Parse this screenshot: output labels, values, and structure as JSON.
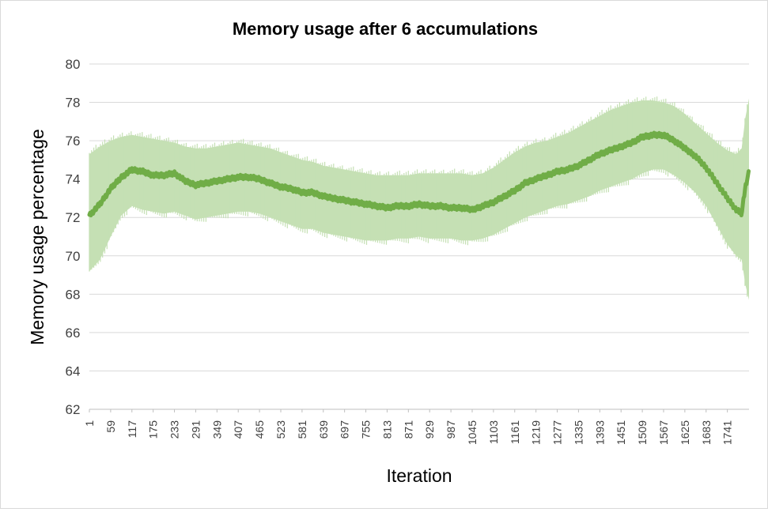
{
  "chart_data": {
    "type": "line",
    "title": "Memory usage after 6 accumulations",
    "xlabel": "Iteration",
    "ylabel": "Memory usage percentage",
    "ylim": [
      62,
      80
    ],
    "yticks": [
      62,
      64,
      66,
      68,
      70,
      72,
      74,
      76,
      78,
      80
    ],
    "xlim": [
      1,
      1800
    ],
    "xtick_labels": [
      "1",
      "59",
      "117",
      "175",
      "233",
      "291",
      "349",
      "407",
      "465",
      "523",
      "581",
      "639",
      "697",
      "755",
      "813",
      "871",
      "929",
      "987",
      "1045",
      "1103",
      "1161",
      "1219",
      "1277",
      "1335",
      "1393",
      "1451",
      "1509",
      "1567",
      "1625",
      "1683",
      "1741"
    ],
    "grid": true,
    "legend": "none",
    "series": [
      {
        "values_mean": [
          {
            "x": 1,
            "y": 72.1
          },
          {
            "x": 30,
            "y": 72.7
          },
          {
            "x": 59,
            "y": 73.5
          },
          {
            "x": 88,
            "y": 74.1
          },
          {
            "x": 117,
            "y": 74.5
          },
          {
            "x": 146,
            "y": 74.4
          },
          {
            "x": 175,
            "y": 74.2
          },
          {
            "x": 204,
            "y": 74.2
          },
          {
            "x": 233,
            "y": 74.3
          },
          {
            "x": 262,
            "y": 73.9
          },
          {
            "x": 291,
            "y": 73.7
          },
          {
            "x": 320,
            "y": 73.8
          },
          {
            "x": 349,
            "y": 73.9
          },
          {
            "x": 378,
            "y": 74.0
          },
          {
            "x": 407,
            "y": 74.1
          },
          {
            "x": 436,
            "y": 74.1
          },
          {
            "x": 465,
            "y": 74.0
          },
          {
            "x": 494,
            "y": 73.8
          },
          {
            "x": 523,
            "y": 73.6
          },
          {
            "x": 552,
            "y": 73.5
          },
          {
            "x": 581,
            "y": 73.3
          },
          {
            "x": 610,
            "y": 73.3
          },
          {
            "x": 639,
            "y": 73.1
          },
          {
            "x": 668,
            "y": 73.0
          },
          {
            "x": 697,
            "y": 72.9
          },
          {
            "x": 726,
            "y": 72.8
          },
          {
            "x": 755,
            "y": 72.7
          },
          {
            "x": 784,
            "y": 72.6
          },
          {
            "x": 813,
            "y": 72.5
          },
          {
            "x": 842,
            "y": 72.6
          },
          {
            "x": 871,
            "y": 72.6
          },
          {
            "x": 900,
            "y": 72.7
          },
          {
            "x": 929,
            "y": 72.6
          },
          {
            "x": 958,
            "y": 72.6
          },
          {
            "x": 987,
            "y": 72.5
          },
          {
            "x": 1016,
            "y": 72.5
          },
          {
            "x": 1045,
            "y": 72.4
          },
          {
            "x": 1074,
            "y": 72.6
          },
          {
            "x": 1103,
            "y": 72.8
          },
          {
            "x": 1132,
            "y": 73.1
          },
          {
            "x": 1161,
            "y": 73.4
          },
          {
            "x": 1190,
            "y": 73.8
          },
          {
            "x": 1219,
            "y": 74.0
          },
          {
            "x": 1248,
            "y": 74.2
          },
          {
            "x": 1277,
            "y": 74.4
          },
          {
            "x": 1306,
            "y": 74.5
          },
          {
            "x": 1335,
            "y": 74.7
          },
          {
            "x": 1364,
            "y": 75.0
          },
          {
            "x": 1393,
            "y": 75.3
          },
          {
            "x": 1422,
            "y": 75.5
          },
          {
            "x": 1451,
            "y": 75.7
          },
          {
            "x": 1480,
            "y": 75.9
          },
          {
            "x": 1509,
            "y": 76.2
          },
          {
            "x": 1538,
            "y": 76.3
          },
          {
            "x": 1567,
            "y": 76.3
          },
          {
            "x": 1596,
            "y": 76.0
          },
          {
            "x": 1625,
            "y": 75.6
          },
          {
            "x": 1654,
            "y": 75.2
          },
          {
            "x": 1683,
            "y": 74.6
          },
          {
            "x": 1712,
            "y": 73.8
          },
          {
            "x": 1741,
            "y": 73.0
          },
          {
            "x": 1765,
            "y": 72.4
          },
          {
            "x": 1780,
            "y": 72.2
          },
          {
            "x": 1790,
            "y": 73.6
          },
          {
            "x": 1800,
            "y": 74.4
          }
        ],
        "band_upper": [
          {
            "x": 1,
            "y": 75.3
          },
          {
            "x": 30,
            "y": 75.7
          },
          {
            "x": 59,
            "y": 76.0
          },
          {
            "x": 88,
            "y": 76.2
          },
          {
            "x": 117,
            "y": 76.3
          },
          {
            "x": 146,
            "y": 76.2
          },
          {
            "x": 175,
            "y": 76.1
          },
          {
            "x": 204,
            "y": 76.0
          },
          {
            "x": 233,
            "y": 75.9
          },
          {
            "x": 262,
            "y": 75.7
          },
          {
            "x": 291,
            "y": 75.6
          },
          {
            "x": 320,
            "y": 75.6
          },
          {
            "x": 349,
            "y": 75.7
          },
          {
            "x": 378,
            "y": 75.8
          },
          {
            "x": 407,
            "y": 75.9
          },
          {
            "x": 436,
            "y": 75.8
          },
          {
            "x": 465,
            "y": 75.7
          },
          {
            "x": 494,
            "y": 75.6
          },
          {
            "x": 523,
            "y": 75.4
          },
          {
            "x": 552,
            "y": 75.2
          },
          {
            "x": 581,
            "y": 75.0
          },
          {
            "x": 610,
            "y": 74.9
          },
          {
            "x": 639,
            "y": 74.7
          },
          {
            "x": 668,
            "y": 74.6
          },
          {
            "x": 697,
            "y": 74.5
          },
          {
            "x": 726,
            "y": 74.4
          },
          {
            "x": 755,
            "y": 74.3
          },
          {
            "x": 784,
            "y": 74.2
          },
          {
            "x": 813,
            "y": 74.2
          },
          {
            "x": 842,
            "y": 74.2
          },
          {
            "x": 871,
            "y": 74.2
          },
          {
            "x": 900,
            "y": 74.3
          },
          {
            "x": 929,
            "y": 74.3
          },
          {
            "x": 958,
            "y": 74.3
          },
          {
            "x": 987,
            "y": 74.3
          },
          {
            "x": 1016,
            "y": 74.3
          },
          {
            "x": 1045,
            "y": 74.2
          },
          {
            "x": 1074,
            "y": 74.3
          },
          {
            "x": 1103,
            "y": 74.6
          },
          {
            "x": 1132,
            "y": 75.0
          },
          {
            "x": 1161,
            "y": 75.4
          },
          {
            "x": 1190,
            "y": 75.7
          },
          {
            "x": 1219,
            "y": 75.9
          },
          {
            "x": 1248,
            "y": 76.0
          },
          {
            "x": 1277,
            "y": 76.2
          },
          {
            "x": 1306,
            "y": 76.4
          },
          {
            "x": 1335,
            "y": 76.7
          },
          {
            "x": 1364,
            "y": 77.0
          },
          {
            "x": 1393,
            "y": 77.3
          },
          {
            "x": 1422,
            "y": 77.6
          },
          {
            "x": 1451,
            "y": 77.8
          },
          {
            "x": 1480,
            "y": 78.0
          },
          {
            "x": 1509,
            "y": 78.1
          },
          {
            "x": 1538,
            "y": 78.1
          },
          {
            "x": 1567,
            "y": 78.0
          },
          {
            "x": 1596,
            "y": 77.8
          },
          {
            "x": 1625,
            "y": 77.4
          },
          {
            "x": 1654,
            "y": 76.9
          },
          {
            "x": 1683,
            "y": 76.4
          },
          {
            "x": 1712,
            "y": 75.9
          },
          {
            "x": 1741,
            "y": 75.5
          },
          {
            "x": 1765,
            "y": 75.3
          },
          {
            "x": 1780,
            "y": 75.6
          },
          {
            "x": 1790,
            "y": 77.2
          },
          {
            "x": 1800,
            "y": 78.2
          }
        ],
        "band_lower": [
          {
            "x": 1,
            "y": 69.2
          },
          {
            "x": 30,
            "y": 69.8
          },
          {
            "x": 59,
            "y": 71.0
          },
          {
            "x": 88,
            "y": 72.1
          },
          {
            "x": 117,
            "y": 72.6
          },
          {
            "x": 146,
            "y": 72.4
          },
          {
            "x": 175,
            "y": 72.3
          },
          {
            "x": 204,
            "y": 72.2
          },
          {
            "x": 233,
            "y": 72.3
          },
          {
            "x": 262,
            "y": 72.1
          },
          {
            "x": 291,
            "y": 71.9
          },
          {
            "x": 320,
            "y": 72.0
          },
          {
            "x": 349,
            "y": 72.1
          },
          {
            "x": 378,
            "y": 72.2
          },
          {
            "x": 407,
            "y": 72.3
          },
          {
            "x": 436,
            "y": 72.3
          },
          {
            "x": 465,
            "y": 72.2
          },
          {
            "x": 494,
            "y": 72.0
          },
          {
            "x": 523,
            "y": 71.8
          },
          {
            "x": 552,
            "y": 71.6
          },
          {
            "x": 581,
            "y": 71.4
          },
          {
            "x": 610,
            "y": 71.4
          },
          {
            "x": 639,
            "y": 71.2
          },
          {
            "x": 668,
            "y": 71.1
          },
          {
            "x": 697,
            "y": 71.0
          },
          {
            "x": 726,
            "y": 70.9
          },
          {
            "x": 755,
            "y": 70.8
          },
          {
            "x": 784,
            "y": 70.8
          },
          {
            "x": 813,
            "y": 70.8
          },
          {
            "x": 842,
            "y": 70.9
          },
          {
            "x": 871,
            "y": 70.9
          },
          {
            "x": 900,
            "y": 71.0
          },
          {
            "x": 929,
            "y": 70.9
          },
          {
            "x": 958,
            "y": 70.9
          },
          {
            "x": 987,
            "y": 70.9
          },
          {
            "x": 1016,
            "y": 70.8
          },
          {
            "x": 1045,
            "y": 70.8
          },
          {
            "x": 1074,
            "y": 70.9
          },
          {
            "x": 1103,
            "y": 71.1
          },
          {
            "x": 1132,
            "y": 71.4
          },
          {
            "x": 1161,
            "y": 71.7
          },
          {
            "x": 1190,
            "y": 72.0
          },
          {
            "x": 1219,
            "y": 72.2
          },
          {
            "x": 1248,
            "y": 72.4
          },
          {
            "x": 1277,
            "y": 72.6
          },
          {
            "x": 1306,
            "y": 72.7
          },
          {
            "x": 1335,
            "y": 72.9
          },
          {
            "x": 1364,
            "y": 73.1
          },
          {
            "x": 1393,
            "y": 73.4
          },
          {
            "x": 1422,
            "y": 73.6
          },
          {
            "x": 1451,
            "y": 73.8
          },
          {
            "x": 1480,
            "y": 74.0
          },
          {
            "x": 1509,
            "y": 74.3
          },
          {
            "x": 1538,
            "y": 74.5
          },
          {
            "x": 1567,
            "y": 74.5
          },
          {
            "x": 1596,
            "y": 74.2
          },
          {
            "x": 1625,
            "y": 73.8
          },
          {
            "x": 1654,
            "y": 73.3
          },
          {
            "x": 1683,
            "y": 72.6
          },
          {
            "x": 1712,
            "y": 71.6
          },
          {
            "x": 1741,
            "y": 70.6
          },
          {
            "x": 1765,
            "y": 70.0
          },
          {
            "x": 1780,
            "y": 69.8
          },
          {
            "x": 1790,
            "y": 68.5
          },
          {
            "x": 1800,
            "y": 67.7
          }
        ]
      }
    ],
    "colors": {
      "line": "#70ad47",
      "band": "#c5e0b4",
      "grid": "#d9d9d9",
      "axis": "#bfbfbf"
    }
  }
}
